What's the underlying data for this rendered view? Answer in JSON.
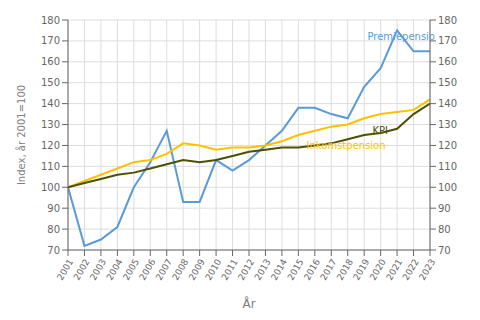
{
  "chart_data": {
    "type": "line",
    "x": [
      2001,
      2002,
      2003,
      2004,
      2005,
      2006,
      2007,
      2008,
      2009,
      2010,
      2011,
      2012,
      2013,
      2014,
      2015,
      2016,
      2017,
      2018,
      2019,
      2020,
      2021,
      2022,
      2023
    ],
    "series": [
      {
        "color": "#5B9BD5",
        "values": [
          100,
          72,
          75,
          81,
          100,
          112,
          127,
          93,
          93,
          113,
          108,
          113,
          120,
          127,
          138,
          138,
          135,
          133,
          148,
          157,
          175,
          165,
          165
        ]
      },
      {
        "color": "#FFC000",
        "values": [
          100,
          103,
          106,
          109,
          112,
          113,
          116,
          121,
          120,
          118,
          119,
          119,
          120,
          122,
          125,
          127,
          129,
          130,
          133,
          135,
          136,
          137,
          142
        ]
      },
      {
        "color": "#4D5000",
        "values": [
          100,
          102,
          104,
          106,
          107,
          109,
          111,
          113,
          112,
          113,
          115,
          117,
          118,
          119,
          119,
          120,
          121,
          123,
          125,
          126,
          128,
          135,
          140
        ]
      }
    ],
    "x_label": "År",
    "y_label": "Index, år 2001=100",
    "xlim": [
      2001,
      2023
    ],
    "xticks": [
      2001,
      2002,
      2003,
      2004,
      2005,
      2006,
      2007,
      2008,
      2009,
      2010,
      2011,
      2012,
      2013,
      2014,
      2015,
      2016,
      2017,
      2018,
      2019,
      2020,
      2021,
      2022,
      2023
    ],
    "ylim": [
      70,
      180
    ],
    "yticks": [
      70,
      80,
      90,
      100,
      110,
      120,
      130,
      140,
      150,
      160,
      170,
      180
    ],
    "y2lim": [
      70,
      180
    ],
    "y2ticks": [
      70,
      80,
      90,
      100,
      110,
      120,
      130,
      140,
      150,
      160,
      170,
      180
    ],
    "grid": true,
    "annotations": [
      {
        "text": "Premiepensio",
        "x": 2019.2,
        "y": 172,
        "color": "#5B9BD5"
      },
      {
        "text": "KPI",
        "x": 2019.5,
        "y": 127,
        "color": "#4D5000"
      },
      {
        "text": "Inkomstpension",
        "x": 2015.5,
        "y": 120,
        "color": "#FFC000"
      }
    ]
  }
}
